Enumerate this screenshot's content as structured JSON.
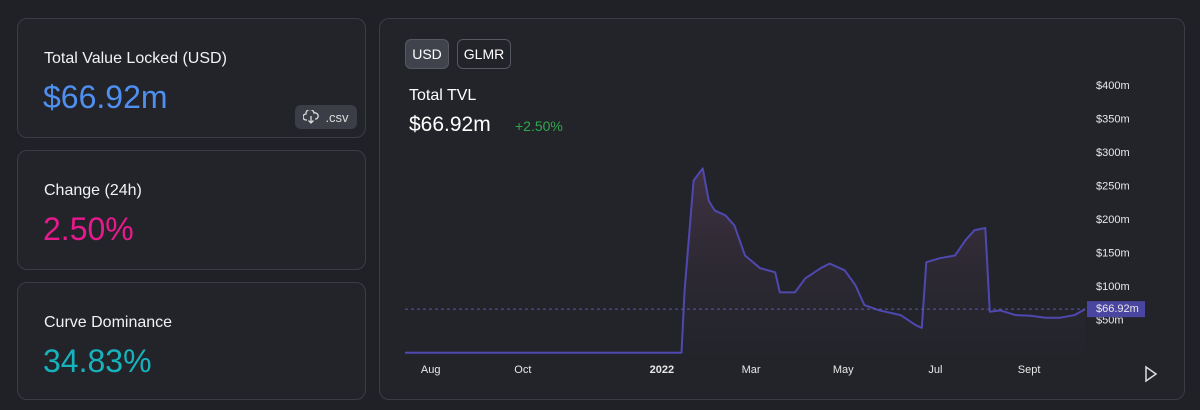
{
  "cards": [
    {
      "label": "Total Value Locked (USD)",
      "value": "$66.92m",
      "button": ".csv"
    },
    {
      "label": "Change (24h)",
      "value": "2.50%"
    },
    {
      "label": "Curve Dominance",
      "value": "34.83%"
    }
  ],
  "toggles": [
    "USD",
    "GLMR"
  ],
  "chart_data": {
    "type": "line",
    "title": "Total TVL",
    "headline": "$66.92m",
    "change": "+2.50%",
    "x": [
      -17,
      166,
      168,
      174,
      180,
      184,
      188,
      195,
      201,
      208,
      218,
      228,
      231,
      241,
      248,
      258,
      264,
      274,
      281,
      287,
      297,
      311,
      321,
      325,
      328,
      337,
      347,
      354,
      360,
      367,
      370,
      377,
      387,
      397,
      407,
      416,
      426,
      433
    ],
    "series": [
      {
        "color": "#4f48b0",
        "values": [
          2,
          2,
          95,
          259,
          277,
          229,
          214,
          207,
          192,
          147,
          128,
          122,
          92,
          92,
          113,
          128,
          135,
          125,
          103,
          73,
          65,
          58,
          43,
          39,
          137,
          143,
          147,
          170,
          185,
          188,
          63,
          65,
          58,
          57,
          54,
          54,
          58,
          66.92
        ]
      }
    ],
    "current": {
      "value": 66.92,
      "label": "$66.92m"
    },
    "xlim": [
      -17,
      433
    ],
    "xticks": [
      {
        "value": 0,
        "label": "Aug"
      },
      {
        "value": 61,
        "label": "Oct"
      },
      {
        "value": 153,
        "label": "2022"
      },
      {
        "value": 212,
        "label": "Mar"
      },
      {
        "value": 273,
        "label": "May"
      },
      {
        "value": 334,
        "label": "Jul"
      },
      {
        "value": 396,
        "label": "Sept"
      }
    ],
    "ylim": [
      0,
      400
    ],
    "yticks": [
      {
        "value": 50,
        "label": "$50m"
      },
      {
        "value": 100,
        "label": "$100m"
      },
      {
        "value": 150,
        "label": "$150m"
      },
      {
        "value": 200,
        "label": "$200m"
      },
      {
        "value": 250,
        "label": "$250m"
      },
      {
        "value": 300,
        "label": "$300m"
      },
      {
        "value": 350,
        "label": "$350m"
      },
      {
        "value": 400,
        "label": "$400m"
      }
    ]
  }
}
